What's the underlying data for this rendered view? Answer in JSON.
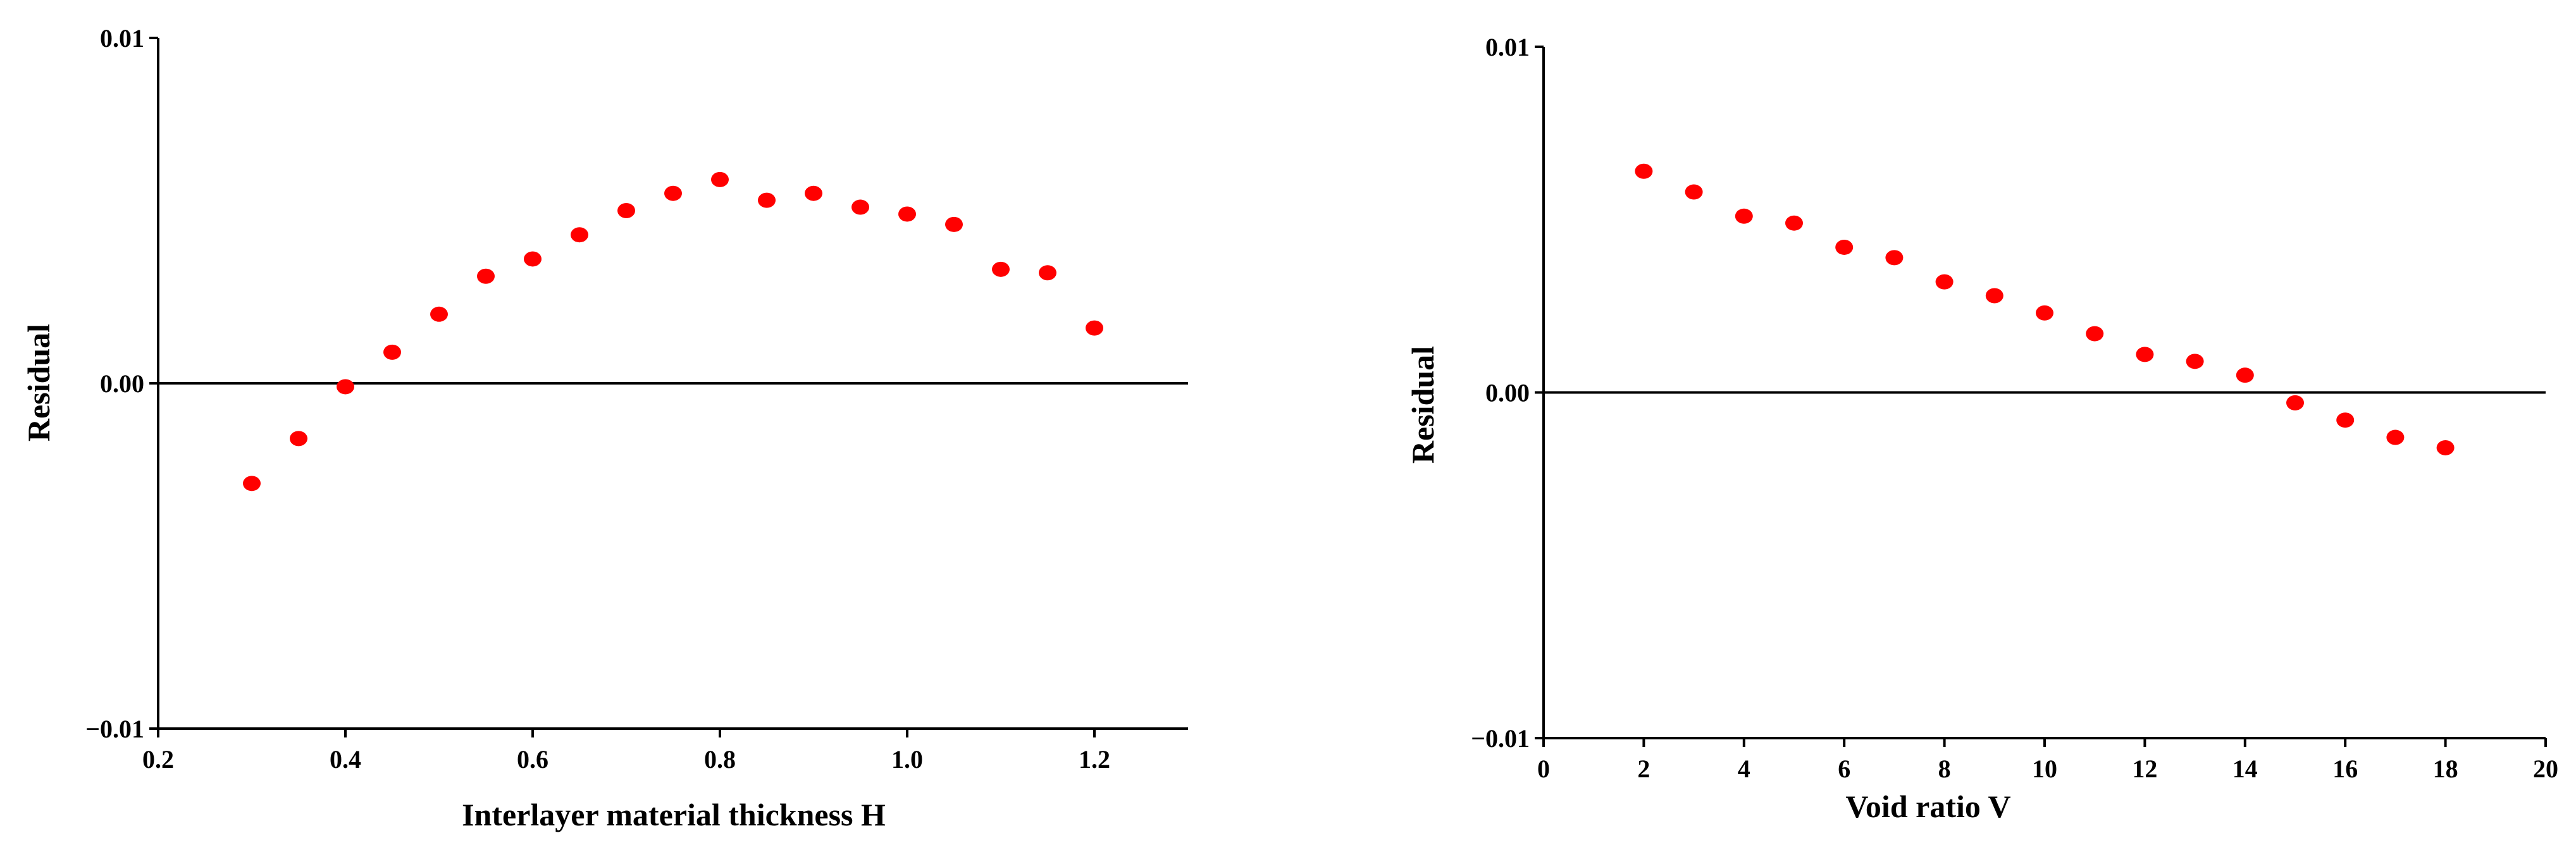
{
  "chart_data": [
    {
      "type": "scatter",
      "title": "",
      "xlabel": "Interlayer material thickness H",
      "ylabel": "Residual",
      "xlim": [
        0.2,
        1.3
      ],
      "ylim": [
        -0.01,
        0.01
      ],
      "x_ticks": [
        "0.2",
        "0.4",
        "0.6",
        "0.8",
        "1.0",
        "1.2"
      ],
      "y_ticks": [
        "0.01",
        "0.00",
        "−0.01"
      ],
      "reference_line_y": 0,
      "marker_color": "#ff0000",
      "grid": false,
      "series": [
        {
          "x": [
            0.3,
            0.35,
            0.4,
            0.45,
            0.5,
            0.55,
            0.6,
            0.65,
            0.7,
            0.75,
            0.8,
            0.85,
            0.9,
            0.95,
            1.0,
            1.05,
            1.1,
            1.15,
            1.2
          ],
          "y": [
            -0.0029,
            -0.0016,
            -0.0001,
            0.0009,
            0.002,
            0.0031,
            0.0036,
            0.0043,
            0.005,
            0.0055,
            0.0059,
            0.0053,
            0.0055,
            0.0051,
            0.0049,
            0.0046,
            0.0033,
            0.0032,
            0.0016
          ]
        }
      ]
    },
    {
      "type": "scatter",
      "title": "",
      "xlabel": "Void ratio V",
      "ylabel": "Residual",
      "xlim": [
        0,
        20
      ],
      "ylim": [
        -0.01,
        0.01
      ],
      "x_ticks": [
        "0",
        "2",
        "4",
        "6",
        "8",
        "10",
        "12",
        "14",
        "16",
        "18",
        "20"
      ],
      "y_ticks": [
        "0.01",
        "0.00",
        "−0.01"
      ],
      "reference_line_y": 0,
      "marker_color": "#ff0000",
      "grid": false,
      "series": [
        {
          "x": [
            2,
            3,
            4,
            5,
            6,
            7,
            8,
            9,
            10,
            11,
            12,
            13,
            14,
            15,
            16,
            17,
            18
          ],
          "y": [
            0.0064,
            0.0058,
            0.0051,
            0.0049,
            0.0042,
            0.0039,
            0.0032,
            0.0028,
            0.0023,
            0.0017,
            0.0011,
            0.0009,
            0.0005,
            -0.0003,
            -0.0008,
            -0.0013,
            -0.0016
          ]
        }
      ]
    }
  ]
}
